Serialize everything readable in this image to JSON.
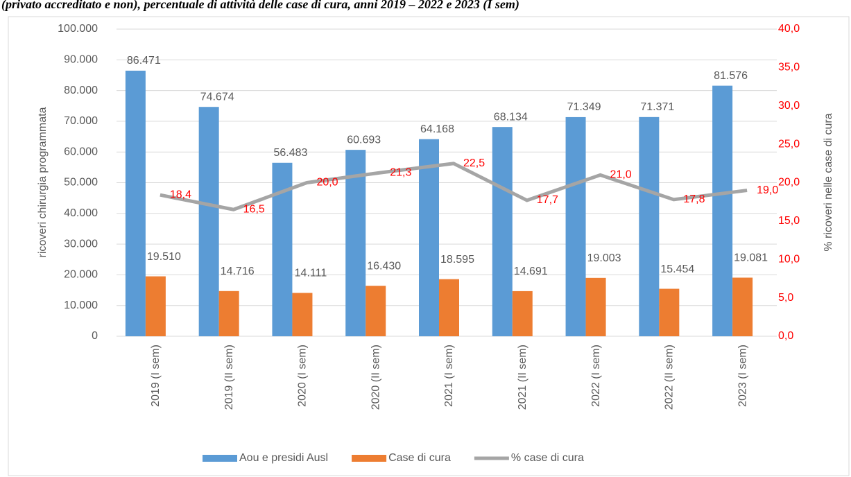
{
  "chart_data": {
    "type": "bar_line",
    "title": "(privato accreditato e non), percentuale di attività delle case di cura, anni 2019 – 2022 e 2023 (I sem)",
    "ylabel": "ricoveri chirurgia programmata",
    "y2label": "% ricoveri nelle  case di cura",
    "categories": [
      "2019 (I sem)",
      "2019 (II sem)",
      "2020 (I sem)",
      "2020 (II sem)",
      "2021 (I sem)",
      "2021 (II sem)",
      "2022 (I sem)",
      "2022 (II sem)",
      "2023 (I sem)"
    ],
    "series": [
      {
        "name": "Aou e presidi Ausl",
        "color": "#5b9bd5",
        "kind": "bar",
        "values": [
          86471,
          74674,
          56483,
          60693,
          64168,
          68134,
          71349,
          71371,
          81576
        ],
        "value_labels": [
          "86.471",
          "74.674",
          "56.483",
          "60.693",
          "64.168",
          "68.134",
          "71.349",
          "71.371",
          "81.576"
        ]
      },
      {
        "name": "Case di cura",
        "color": "#ed7d31",
        "kind": "bar",
        "values": [
          19510,
          14716,
          14111,
          16430,
          18595,
          14691,
          19003,
          15454,
          19081
        ],
        "value_labels": [
          "19.510",
          "14.716",
          "14.111",
          "16.430",
          "18.595",
          "14.691",
          "19.003",
          "15.454",
          "19.081"
        ]
      },
      {
        "name": "% case di cura",
        "color": "#a5a5a5",
        "kind": "line",
        "axis": "y2",
        "label_color": "#ff0000",
        "values": [
          18.4,
          16.5,
          20.0,
          21.3,
          22.5,
          17.7,
          21.0,
          17.8,
          19.0
        ],
        "value_labels": [
          "18,4",
          "16,5",
          "20,0",
          "21,3",
          "22,5",
          "17,7",
          "21,0",
          "17,8",
          "19,0"
        ]
      }
    ],
    "ylim": [
      0,
      100000
    ],
    "yticks": [
      0,
      {
        "value": 10000,
        "label": "10.000"
      },
      {
        "value": 20000,
        "label": "20.000"
      },
      {
        "value": 30000,
        "label": "30.000"
      },
      {
        "value": 40000,
        "label": "40.000"
      },
      {
        "value": 50000,
        "label": "50.000"
      },
      {
        "value": 60000,
        "label": "60.000"
      },
      {
        "value": 70000,
        "label": "70.000"
      },
      {
        "value": 80000,
        "label": "80.000"
      },
      {
        "value": 90000,
        "label": "90.000"
      },
      {
        "value": 100000,
        "label": "100.000"
      }
    ],
    "y2lim": [
      0,
      40
    ],
    "y2ticks": [
      {
        "value": 0,
        "label": "0,0"
      },
      {
        "value": 5,
        "label": "5,0"
      },
      {
        "value": 10,
        "label": "10,0"
      },
      {
        "value": 15,
        "label": "15,0"
      },
      {
        "value": 20,
        "label": "20,0"
      },
      {
        "value": 25,
        "label": "25,0"
      },
      {
        "value": 30,
        "label": "30,0"
      },
      {
        "value": 35,
        "label": "35,0"
      },
      {
        "value": 40,
        "label": "40,0"
      }
    ],
    "y2tick_color": "#ff0000",
    "legend": "bottom"
  }
}
